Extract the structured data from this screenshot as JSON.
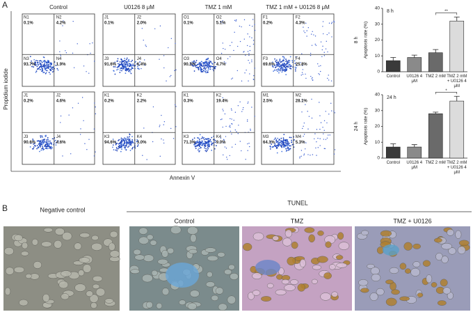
{
  "panel_a": {
    "label": "A",
    "columns": [
      "Control",
      "U0126 8 μM",
      "TMZ 1 mM",
      "TMZ 1 mM + U0126 8 μM"
    ],
    "y_axis_label": "Propidium iodide",
    "x_axis_label": "Annexin V",
    "plots": [
      [
        {
          "quadrants": [
            {
              "name": "N1",
              "value": "0.1%"
            },
            {
              "name": "N2",
              "value": "4.2%"
            },
            {
              "name": "N3",
              "value": "93.7%"
            },
            {
              "name": "N4",
              "value": "1.9%"
            }
          ]
        },
        {
          "quadrants": [
            {
              "name": "J1",
              "value": "0.1%"
            },
            {
              "name": "J2",
              "value": "2.0%"
            },
            {
              "name": "J3",
              "value": "91.6%"
            },
            {
              "name": "J4",
              "value": "6.4%"
            }
          ]
        },
        {
          "quadrants": [
            {
              "name": "O1",
              "value": "0.1%"
            },
            {
              "name": "O2",
              "value": "5.1%"
            },
            {
              "name": "O3",
              "value": "90.2%"
            },
            {
              "name": "O4",
              "value": "4.7%"
            }
          ]
        },
        {
          "quadrants": [
            {
              "name": "F1",
              "value": "0.2%"
            },
            {
              "name": "F2",
              "value": "4.3%"
            },
            {
              "name": "F3",
              "value": "69.6%"
            },
            {
              "name": "F4",
              "value": "25.8%"
            }
          ]
        }
      ],
      [
        {
          "quadrants": [
            {
              "name": "J1",
              "value": "0.2%"
            },
            {
              "name": "J2",
              "value": "4.6%"
            },
            {
              "name": "J3",
              "value": "90.6%"
            },
            {
              "name": "J4",
              "value": "4.6%"
            }
          ]
        },
        {
          "quadrants": [
            {
              "name": "K1",
              "value": "0.2%"
            },
            {
              "name": "K2",
              "value": "2.2%"
            },
            {
              "name": "K3",
              "value": "94.6%"
            },
            {
              "name": "K4",
              "value": "3.0%"
            }
          ]
        },
        {
          "quadrants": [
            {
              "name": "K1",
              "value": "0.3%"
            },
            {
              "name": "K2",
              "value": "19.4%"
            },
            {
              "name": "K3",
              "value": "71.3%"
            },
            {
              "name": "K4",
              "value": "9.0%"
            }
          ]
        },
        {
          "quadrants": [
            {
              "name": "M1",
              "value": "2.5%"
            },
            {
              "name": "M2",
              "value": "28.1%"
            },
            {
              "name": "M3",
              "value": "64.1%"
            },
            {
              "name": "M4",
              "value": "5.3%"
            }
          ]
        }
      ]
    ],
    "charts": [
      {
        "type": "bar",
        "title": "8 h",
        "y_label": "Apoptosis rate (%)",
        "categories": [
          "Control",
          "U0126 4 μM",
          "TMZ 2 mM",
          "TMZ 2 mM + U0126 4 μM"
        ],
        "values": [
          7,
          9,
          12,
          32
        ],
        "errors": [
          2,
          1.5,
          2,
          2.5
        ],
        "colors": [
          "#3a3a3a",
          "#8a8a8a",
          "#6a6a6a",
          "#dcdcdc"
        ],
        "ylim": [
          0,
          40
        ],
        "yticks": [
          0,
          10,
          20,
          30,
          40
        ],
        "annotation": "**"
      },
      {
        "type": "bar",
        "title": "24 h",
        "y_label": "Apoptosis rate (%)",
        "categories": [
          "Control",
          "U0126 4 μM",
          "TMZ 2 mM",
          "TMZ 2 mM + U0126 4 μM"
        ],
        "values": [
          7,
          7,
          28,
          36
        ],
        "errors": [
          2,
          1.5,
          1,
          3
        ],
        "colors": [
          "#3a3a3a",
          "#8a8a8a",
          "#6a6a6a",
          "#dcdcdc"
        ],
        "ylim": [
          0,
          40
        ],
        "yticks": [
          0,
          10,
          20,
          30,
          40
        ],
        "annotation": "*"
      }
    ]
  },
  "panel_b": {
    "label": "B",
    "group_label": "TUNEL",
    "images": [
      "Negative control",
      "Control",
      "TMZ",
      "TMZ + U0126"
    ]
  }
}
